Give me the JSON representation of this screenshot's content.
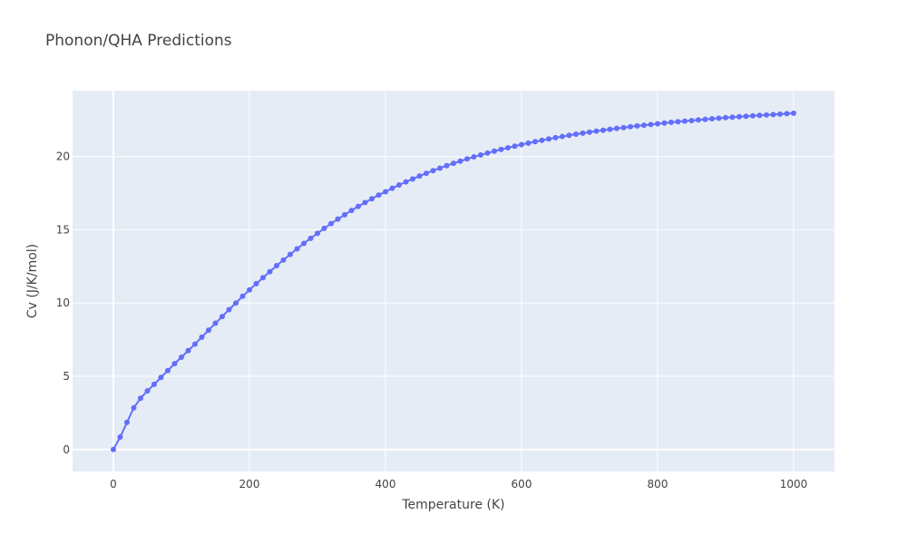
{
  "chart_data": {
    "type": "line",
    "title": "Phonon/QHA Predictions",
    "xlabel": "Temperature (K)",
    "ylabel": "Cv (J/K/mol)",
    "xlim": [
      -60,
      1060
    ],
    "ylim": [
      -1.5,
      24.5
    ],
    "xticks": [
      0,
      200,
      400,
      600,
      800,
      1000
    ],
    "yticks": [
      0,
      5,
      10,
      15,
      20
    ],
    "grid": true,
    "plot_background": "#e5ecf6",
    "series_color": "#636efa",
    "mode": "lines+markers",
    "x": [
      0,
      10,
      20,
      30,
      40,
      50,
      60,
      70,
      80,
      90,
      100,
      110,
      120,
      130,
      140,
      150,
      160,
      170,
      180,
      190,
      200,
      210,
      220,
      230,
      240,
      250,
      260,
      270,
      280,
      290,
      300,
      310,
      320,
      330,
      340,
      350,
      360,
      370,
      380,
      390,
      400,
      410,
      420,
      430,
      440,
      450,
      460,
      470,
      480,
      490,
      500,
      510,
      520,
      530,
      540,
      550,
      560,
      570,
      580,
      590,
      600,
      610,
      620,
      630,
      640,
      650,
      660,
      670,
      680,
      690,
      700,
      710,
      720,
      730,
      740,
      750,
      760,
      770,
      780,
      790,
      800,
      810,
      820,
      830,
      840,
      850,
      860,
      870,
      880,
      890,
      900,
      910,
      920,
      930,
      940,
      950,
      960,
      970,
      980,
      990,
      1000
    ],
    "y": [
      0,
      0.85,
      1.85,
      2.85,
      3.5,
      4.0,
      4.45,
      4.92,
      5.39,
      5.86,
      6.3,
      6.75,
      7.2,
      7.67,
      8.15,
      8.62,
      9.08,
      9.55,
      10.0,
      10.46,
      10.9,
      11.32,
      11.73,
      12.14,
      12.55,
      12.94,
      13.32,
      13.7,
      14.07,
      14.42,
      14.76,
      15.1,
      15.42,
      15.73,
      16.03,
      16.32,
      16.6,
      16.86,
      17.12,
      17.37,
      17.6,
      17.84,
      18.06,
      18.27,
      18.47,
      18.67,
      18.86,
      19.04,
      19.21,
      19.38,
      19.54,
      19.69,
      19.84,
      19.98,
      20.11,
      20.24,
      20.37,
      20.49,
      20.6,
      20.71,
      20.82,
      20.92,
      21.02,
      21.11,
      21.2,
      21.29,
      21.37,
      21.45,
      21.53,
      21.6,
      21.67,
      21.74,
      21.8,
      21.86,
      21.92,
      21.98,
      22.04,
      22.09,
      22.14,
      22.19,
      22.24,
      22.29,
      22.34,
      22.38,
      22.42,
      22.46,
      22.5,
      22.54,
      22.58,
      22.62,
      22.66,
      22.69,
      22.72,
      22.75,
      22.78,
      22.81,
      22.84,
      22.87,
      22.9,
      22.93,
      22.96
    ]
  }
}
